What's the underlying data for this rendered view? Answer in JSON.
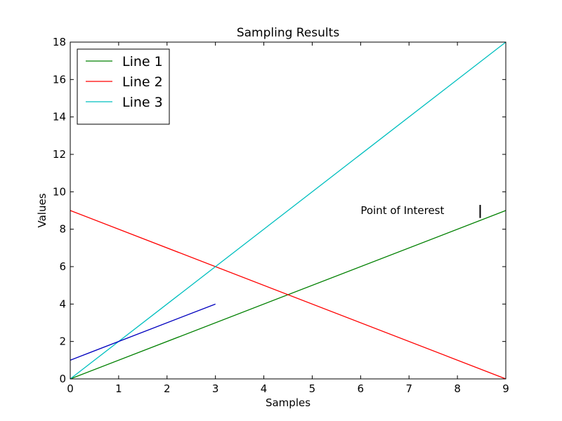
{
  "chart_data": {
    "type": "line",
    "title": "Sampling Results",
    "xlabel": "Samples",
    "ylabel": "Values",
    "xlim": [
      0,
      9
    ],
    "ylim": [
      0,
      18
    ],
    "xticks": [
      0,
      1,
      2,
      3,
      4,
      5,
      6,
      7,
      8,
      9
    ],
    "yticks": [
      0,
      2,
      4,
      6,
      8,
      10,
      12,
      14,
      16,
      18
    ],
    "grid": false,
    "legend_placement": "upper-left",
    "series": [
      {
        "name": "Line 1",
        "color": "#008000",
        "x": [
          0,
          9
        ],
        "y": [
          0,
          9
        ],
        "in_legend": true
      },
      {
        "name": "Line 2",
        "color": "#ff0000",
        "x": [
          0,
          9
        ],
        "y": [
          9,
          0
        ],
        "in_legend": true
      },
      {
        "name": "Line 3",
        "color": "#00bfbf",
        "x": [
          0,
          9
        ],
        "y": [
          0,
          18
        ],
        "in_legend": true
      },
      {
        "color": "#0000bf",
        "x": [
          0,
          3
        ],
        "y": [
          1,
          4
        ],
        "in_legend": false
      }
    ],
    "annotations": [
      {
        "text": "Point of Interest",
        "x": 6.0,
        "y": 9.0
      }
    ],
    "markers": [
      {
        "type": "vertical-tick",
        "x": 8.47,
        "y_from": 8.6,
        "y_to": 9.3
      }
    ]
  }
}
